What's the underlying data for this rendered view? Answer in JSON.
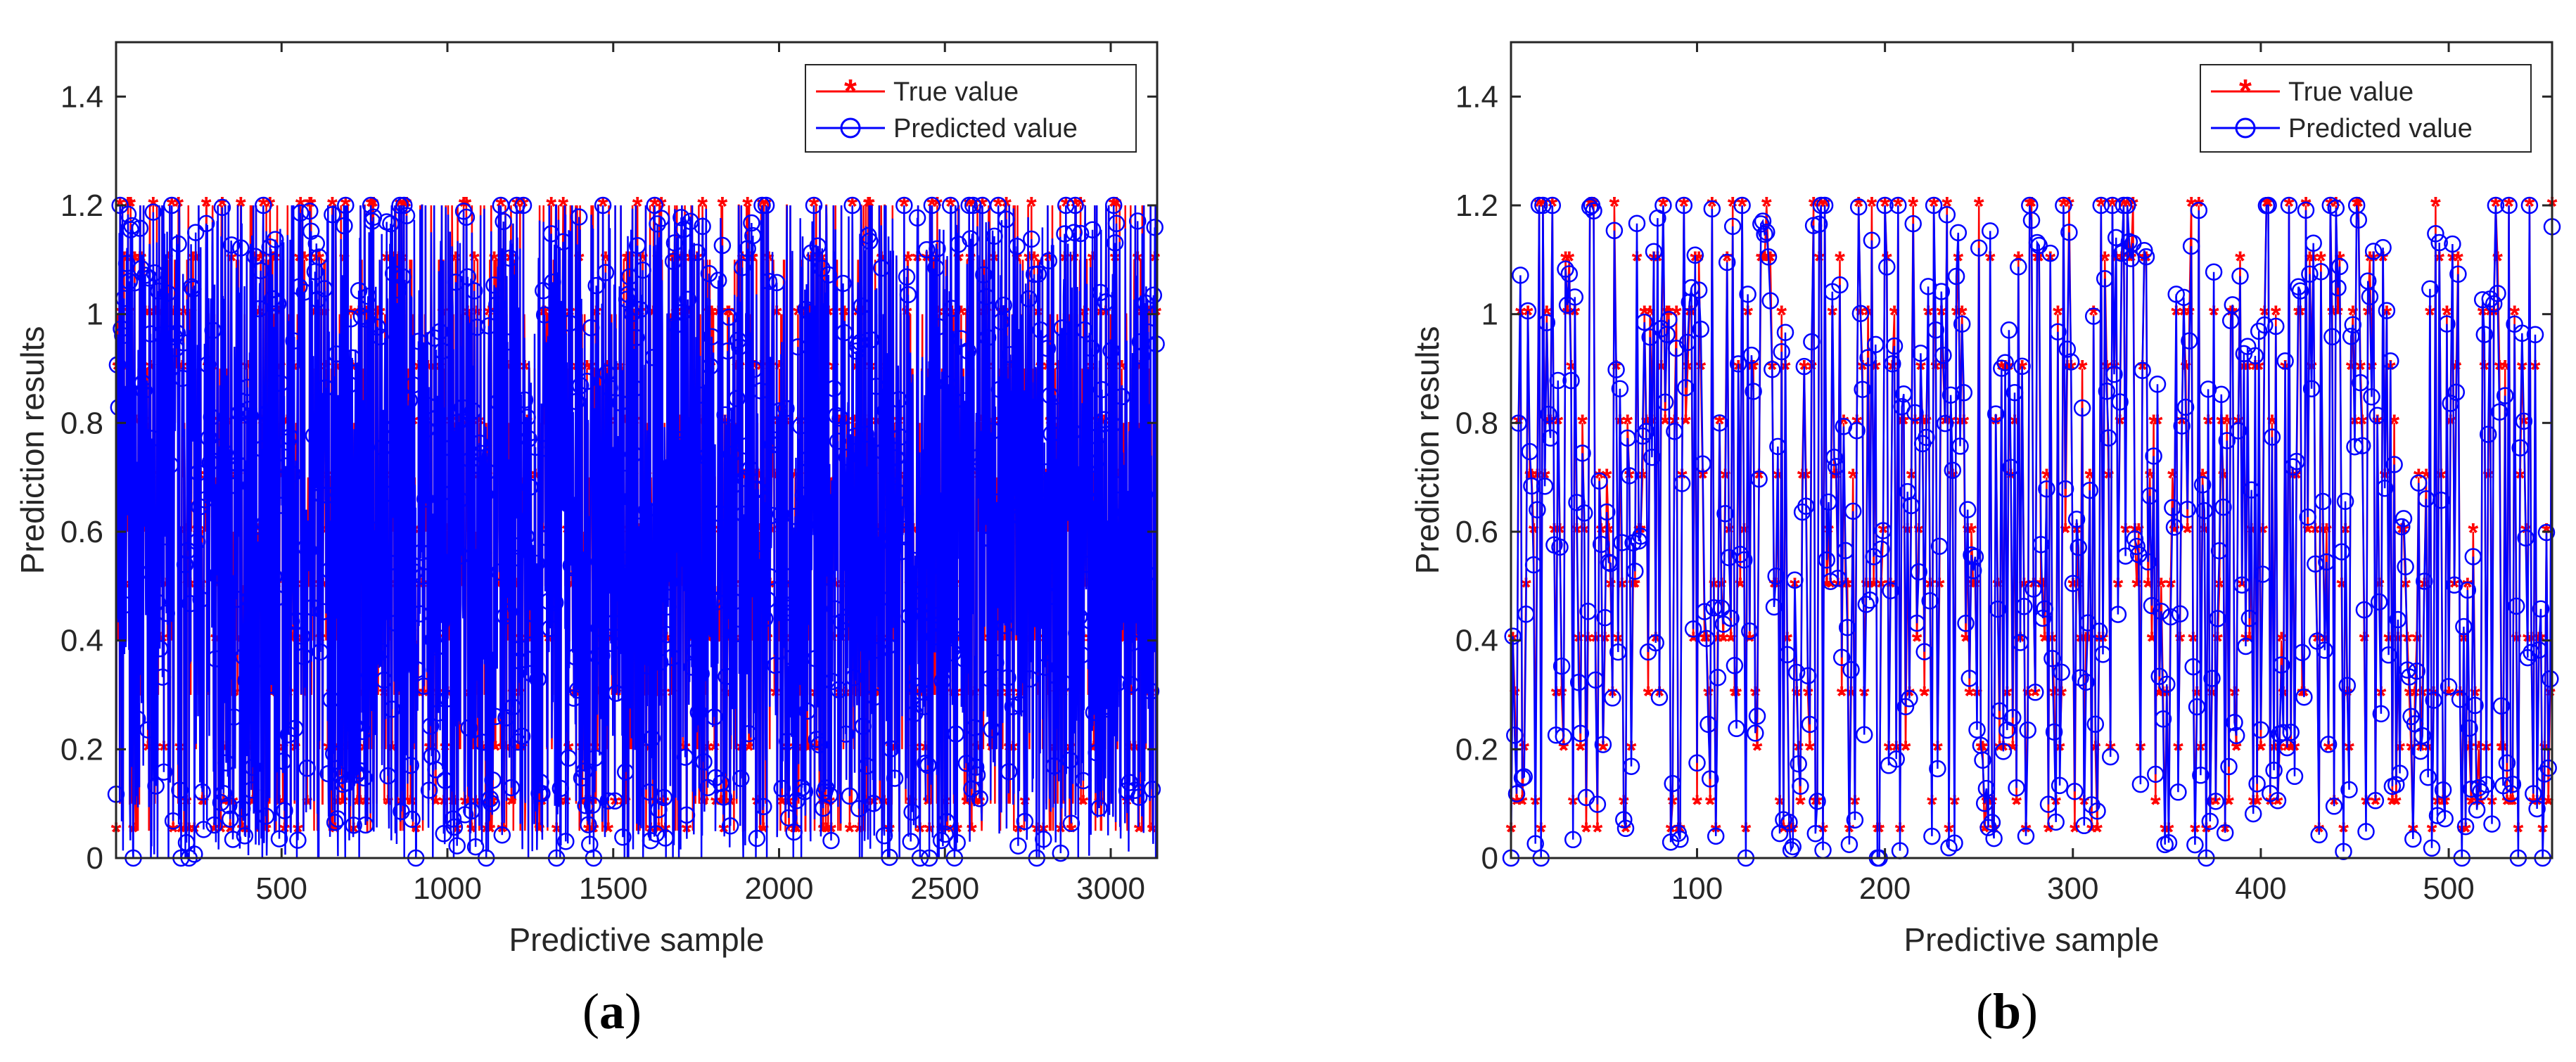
{
  "colors": {
    "true_series": "#ff0000",
    "pred_series": "#0000ff",
    "axes": "#262626",
    "background": "#ffffff"
  },
  "chart_data": [
    {
      "panel_label": "(a)",
      "panel_label_parts": [
        "(",
        "a",
        ")"
      ],
      "type": "line",
      "xlabel": "Predictive sample",
      "ylabel": "Prediction results",
      "xlim": [
        1,
        3140
      ],
      "ylim": [
        0,
        1.5
      ],
      "xticks": [
        500,
        1000,
        1500,
        2000,
        2500,
        3000
      ],
      "xtick_labels": [
        "500",
        "1000",
        "1500",
        "2000",
        "2500",
        "3000"
      ],
      "yticks": [
        0,
        0.2,
        0.4,
        0.6,
        0.8,
        1,
        1.2,
        1.4
      ],
      "ytick_labels": [
        "0",
        "0.2",
        "0.4",
        "0.6",
        "0.8",
        "1",
        "1.2",
        "1.4"
      ],
      "legend": {
        "position": "top-right",
        "entries": [
          "True value",
          "Predicted value"
        ]
      },
      "n_samples": 3140,
      "series": [
        {
          "name": "True value",
          "marker": "asterisk",
          "color": "#ff0000",
          "value_levels": [
            0.05,
            0.1,
            0.2,
            0.3,
            0.4,
            0.5,
            0.6,
            0.7,
            0.8,
            0.9,
            1.0,
            1.1,
            1.2
          ]
        },
        {
          "name": "Predicted value",
          "marker": "circle",
          "color": "#0000ff",
          "range": [
            0,
            1.2
          ]
        }
      ]
    },
    {
      "panel_label": "(b)",
      "panel_label_parts": [
        "(",
        "b",
        ")"
      ],
      "type": "line",
      "xlabel": "Predictive sample",
      "ylabel": "Prediction results",
      "xlim": [
        1,
        555
      ],
      "ylim": [
        0,
        1.5
      ],
      "xticks": [
        100,
        200,
        300,
        400,
        500
      ],
      "xtick_labels": [
        "100",
        "200",
        "300",
        "400",
        "500"
      ],
      "yticks": [
        0,
        0.2,
        0.4,
        0.6,
        0.8,
        1,
        1.2,
        1.4
      ],
      "ytick_labels": [
        "0",
        "0.2",
        "0.4",
        "0.6",
        "0.8",
        "1",
        "1.2",
        "1.4"
      ],
      "legend": {
        "position": "top-right",
        "entries": [
          "True value",
          "Predicted value"
        ]
      },
      "n_samples": 555,
      "series": [
        {
          "name": "True value",
          "marker": "asterisk",
          "color": "#ff0000",
          "value_levels": [
            0.05,
            0.1,
            0.2,
            0.3,
            0.4,
            0.5,
            0.6,
            0.7,
            0.8,
            0.9,
            1.0,
            1.1,
            1.2
          ]
        },
        {
          "name": "Predicted value",
          "marker": "circle",
          "color": "#0000ff",
          "range": [
            0,
            1.2
          ]
        }
      ]
    }
  ]
}
